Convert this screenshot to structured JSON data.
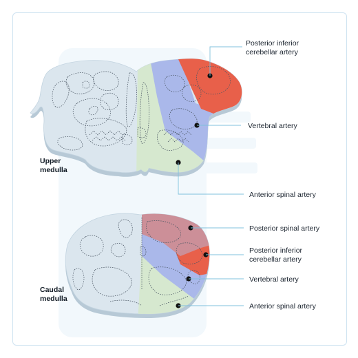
{
  "colors": {
    "background": "#ffffff",
    "frame_border": "#cfe3f1",
    "backdrop": "#f2f8fc",
    "tissue": "#dbe6ee",
    "tissue_edge": "#b7c9d6",
    "posterior_inferior_cerebellar": "#e8604a",
    "vertebral": "#aab8ea",
    "anterior_spinal": "#d6e8cf",
    "posterior_spinal": "#cc8f98",
    "leader_line": "#7fc1dc"
  },
  "sections": {
    "upper": {
      "label_line1": "Upper",
      "label_line2": "medulla"
    },
    "caudal": {
      "label_line1": "Caudal",
      "label_line2": "medulla"
    }
  },
  "labels": {
    "upper_pica_1": "Posterior inferior",
    "upper_pica_2": "cerebellar artery",
    "upper_vertebral": "Vertebral artery",
    "upper_anterior_spinal": "Anterior spinal artery",
    "caudal_posterior_spinal": "Posterior spinal artery",
    "caudal_pica_1": "Posterior inferior",
    "caudal_pica_2": "cerebellar artery",
    "caudal_vertebral": "Vertebral artery",
    "caudal_anterior_spinal": "Anterior spinal artery"
  }
}
